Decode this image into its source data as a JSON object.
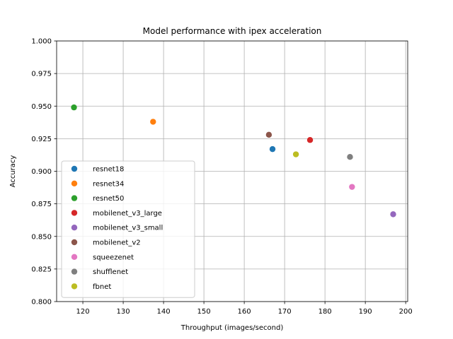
{
  "chart_data": {
    "type": "scatter",
    "title": "Model performance with ipex acceleration",
    "xlabel": "Throughput (images/second)",
    "ylabel": "Accuracy",
    "xlim": [
      113.5,
      200.5
    ],
    "ylim": [
      0.8,
      1.0
    ],
    "xticks": [
      "120",
      "130",
      "140",
      "150",
      "160",
      "170",
      "180",
      "190",
      "200"
    ],
    "yticks": [
      "0.800",
      "0.825",
      "0.850",
      "0.875",
      "0.900",
      "0.925",
      "0.950",
      "0.975",
      "1.000"
    ],
    "grid": true,
    "legend_position": "lower-left",
    "series": [
      {
        "name": "resnet18",
        "color": "#1f77b4",
        "x": [
          167.0
        ],
        "y": [
          0.917
        ]
      },
      {
        "name": "resnet34",
        "color": "#ff7f0e",
        "x": [
          137.4
        ],
        "y": [
          0.938
        ]
      },
      {
        "name": "resnet50",
        "color": "#2ca02c",
        "x": [
          117.8
        ],
        "y": [
          0.949
        ]
      },
      {
        "name": "mobilenet_v3_large",
        "color": "#d62728",
        "x": [
          176.3
        ],
        "y": [
          0.924
        ]
      },
      {
        "name": "mobilenet_v3_small",
        "color": "#9467bd",
        "x": [
          196.9
        ],
        "y": [
          0.867
        ]
      },
      {
        "name": "mobilenet_v2",
        "color": "#8c564b",
        "x": [
          166.1
        ],
        "y": [
          0.928
        ]
      },
      {
        "name": "squeezenet",
        "color": "#e377c2",
        "x": [
          186.7
        ],
        "y": [
          0.888
        ]
      },
      {
        "name": "shufflenet",
        "color": "#7f7f7f",
        "x": [
          186.2
        ],
        "y": [
          0.911
        ]
      },
      {
        "name": "fbnet",
        "color": "#bcbd22",
        "x": [
          172.8
        ],
        "y": [
          0.913
        ]
      }
    ]
  }
}
